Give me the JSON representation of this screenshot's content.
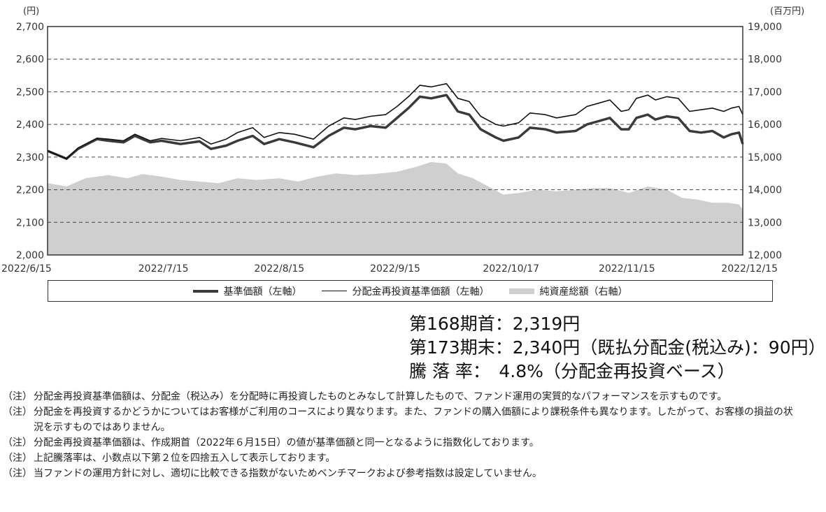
{
  "chart_data": {
    "type": "line",
    "left_unit": "(円)",
    "right_unit": "(百万円)",
    "left_ticks": [
      "2,700",
      "2,600",
      "2,500",
      "2,400",
      "2,300",
      "2,200",
      "2,100",
      "2,000"
    ],
    "right_ticks": [
      "19,000",
      "18,000",
      "17,000",
      "16,000",
      "15,000",
      "14,000",
      "13,000",
      "12,000"
    ],
    "ylim_left": [
      2000,
      2700
    ],
    "ylim_right": [
      12000,
      19000
    ],
    "x_tick_labels": [
      "2022/6/15",
      "2022/7/15",
      "2022/8/15",
      "2022/9/15",
      "2022/10/17",
      "2022/11/15",
      "2022/12/15"
    ],
    "x_range": [
      "2022-06-15",
      "2022-12-15"
    ],
    "grid": "horizontal dashed",
    "legend_placement": "below",
    "series": [
      {
        "name": "基準価額（左軸）",
        "axis": "left",
        "style": "thick-line",
        "color": "#3a3a3a",
        "points": [
          [
            "2022-06-15",
            2319
          ],
          [
            "2022-06-20",
            2295
          ],
          [
            "2022-06-23",
            2325
          ],
          [
            "2022-06-28",
            2355
          ],
          [
            "2022-07-01",
            2350
          ],
          [
            "2022-07-05",
            2345
          ],
          [
            "2022-07-08",
            2365
          ],
          [
            "2022-07-12",
            2345
          ],
          [
            "2022-07-15",
            2350
          ],
          [
            "2022-07-20",
            2340
          ],
          [
            "2022-07-25",
            2348
          ],
          [
            "2022-07-28",
            2325
          ],
          [
            "2022-08-01",
            2335
          ],
          [
            "2022-08-04",
            2350
          ],
          [
            "2022-08-08",
            2365
          ],
          [
            "2022-08-11",
            2340
          ],
          [
            "2022-08-15",
            2355
          ],
          [
            "2022-08-19",
            2345
          ],
          [
            "2022-08-24",
            2330
          ],
          [
            "2022-08-28",
            2365
          ],
          [
            "2022-09-01",
            2390
          ],
          [
            "2022-09-04",
            2385
          ],
          [
            "2022-09-08",
            2395
          ],
          [
            "2022-09-12",
            2390
          ],
          [
            "2022-09-15",
            2420
          ],
          [
            "2022-09-18",
            2450
          ],
          [
            "2022-09-21",
            2485
          ],
          [
            "2022-09-24",
            2480
          ],
          [
            "2022-09-28",
            2490
          ],
          [
            "2022-10-01",
            2440
          ],
          [
            "2022-10-04",
            2430
          ],
          [
            "2022-10-07",
            2385
          ],
          [
            "2022-10-11",
            2360
          ],
          [
            "2022-10-13",
            2350
          ],
          [
            "2022-10-17",
            2360
          ],
          [
            "2022-10-20",
            2390
          ],
          [
            "2022-10-24",
            2385
          ],
          [
            "2022-10-27",
            2375
          ],
          [
            "2022-11-01",
            2380
          ],
          [
            "2022-11-04",
            2400
          ],
          [
            "2022-11-07",
            2410
          ],
          [
            "2022-11-10",
            2420
          ],
          [
            "2022-11-13",
            2385
          ],
          [
            "2022-11-15",
            2385
          ],
          [
            "2022-11-17",
            2420
          ],
          [
            "2022-11-20",
            2430
          ],
          [
            "2022-11-22",
            2415
          ],
          [
            "2022-11-25",
            2425
          ],
          [
            "2022-11-28",
            2420
          ],
          [
            "2022-12-01",
            2380
          ],
          [
            "2022-12-04",
            2375
          ],
          [
            "2022-12-07",
            2380
          ],
          [
            "2022-12-10",
            2360
          ],
          [
            "2022-12-12",
            2370
          ],
          [
            "2022-12-14",
            2375
          ],
          [
            "2022-12-15",
            2340
          ]
        ]
      },
      {
        "name": "分配金再投資基準価額（左軸）",
        "axis": "left",
        "style": "thin-line",
        "color": "#111111",
        "points": [
          [
            "2022-06-15",
            2319
          ],
          [
            "2022-06-20",
            2295
          ],
          [
            "2022-06-23",
            2328
          ],
          [
            "2022-06-28",
            2358
          ],
          [
            "2022-07-01",
            2355
          ],
          [
            "2022-07-05",
            2350
          ],
          [
            "2022-07-08",
            2370
          ],
          [
            "2022-07-12",
            2350
          ],
          [
            "2022-07-15",
            2357
          ],
          [
            "2022-07-20",
            2350
          ],
          [
            "2022-07-25",
            2360
          ],
          [
            "2022-07-28",
            2340
          ],
          [
            "2022-08-01",
            2355
          ],
          [
            "2022-08-04",
            2375
          ],
          [
            "2022-08-08",
            2390
          ],
          [
            "2022-08-11",
            2360
          ],
          [
            "2022-08-15",
            2375
          ],
          [
            "2022-08-19",
            2370
          ],
          [
            "2022-08-24",
            2355
          ],
          [
            "2022-08-28",
            2395
          ],
          [
            "2022-09-01",
            2420
          ],
          [
            "2022-09-04",
            2415
          ],
          [
            "2022-09-08",
            2425
          ],
          [
            "2022-09-12",
            2430
          ],
          [
            "2022-09-15",
            2455
          ],
          [
            "2022-09-18",
            2485
          ],
          [
            "2022-09-21",
            2520
          ],
          [
            "2022-09-24",
            2515
          ],
          [
            "2022-09-28",
            2525
          ],
          [
            "2022-10-01",
            2480
          ],
          [
            "2022-10-04",
            2470
          ],
          [
            "2022-10-07",
            2425
          ],
          [
            "2022-10-11",
            2400
          ],
          [
            "2022-10-13",
            2395
          ],
          [
            "2022-10-17",
            2405
          ],
          [
            "2022-10-20",
            2435
          ],
          [
            "2022-10-24",
            2430
          ],
          [
            "2022-10-27",
            2420
          ],
          [
            "2022-11-01",
            2430
          ],
          [
            "2022-11-04",
            2455
          ],
          [
            "2022-11-07",
            2465
          ],
          [
            "2022-11-10",
            2475
          ],
          [
            "2022-11-13",
            2440
          ],
          [
            "2022-11-15",
            2445
          ],
          [
            "2022-11-17",
            2480
          ],
          [
            "2022-11-20",
            2490
          ],
          [
            "2022-11-22",
            2475
          ],
          [
            "2022-11-25",
            2485
          ],
          [
            "2022-11-28",
            2480
          ],
          [
            "2022-12-01",
            2440
          ],
          [
            "2022-12-04",
            2445
          ],
          [
            "2022-12-07",
            2450
          ],
          [
            "2022-12-10",
            2440
          ],
          [
            "2022-12-12",
            2450
          ],
          [
            "2022-12-14",
            2455
          ],
          [
            "2022-12-15",
            2430
          ]
        ]
      },
      {
        "name": "純資産総額（右軸）",
        "axis": "right",
        "style": "area",
        "color": "#cfcfcf",
        "points": [
          [
            "2022-06-15",
            14200
          ],
          [
            "2022-06-20",
            14100
          ],
          [
            "2022-06-25",
            14350
          ],
          [
            "2022-07-01",
            14450
          ],
          [
            "2022-07-06",
            14350
          ],
          [
            "2022-07-10",
            14480
          ],
          [
            "2022-07-15",
            14400
          ],
          [
            "2022-07-20",
            14300
          ],
          [
            "2022-07-25",
            14250
          ],
          [
            "2022-07-30",
            14200
          ],
          [
            "2022-08-04",
            14350
          ],
          [
            "2022-08-09",
            14300
          ],
          [
            "2022-08-15",
            14350
          ],
          [
            "2022-08-20",
            14250
          ],
          [
            "2022-08-25",
            14400
          ],
          [
            "2022-08-30",
            14500
          ],
          [
            "2022-09-04",
            14450
          ],
          [
            "2022-09-09",
            14480
          ],
          [
            "2022-09-15",
            14550
          ],
          [
            "2022-09-20",
            14700
          ],
          [
            "2022-09-24",
            14850
          ],
          [
            "2022-09-28",
            14800
          ],
          [
            "2022-10-01",
            14500
          ],
          [
            "2022-10-05",
            14350
          ],
          [
            "2022-10-09",
            14100
          ],
          [
            "2022-10-13",
            13850
          ],
          [
            "2022-10-17",
            13900
          ],
          [
            "2022-10-22",
            14000
          ],
          [
            "2022-10-27",
            13950
          ],
          [
            "2022-11-01",
            14000
          ],
          [
            "2022-11-06",
            14050
          ],
          [
            "2022-11-10",
            14050
          ],
          [
            "2022-11-15",
            13900
          ],
          [
            "2022-11-20",
            14100
          ],
          [
            "2022-11-25",
            14000
          ],
          [
            "2022-11-29",
            13750
          ],
          [
            "2022-12-03",
            13700
          ],
          [
            "2022-12-07",
            13600
          ],
          [
            "2022-12-11",
            13600
          ],
          [
            "2022-12-14",
            13550
          ],
          [
            "2022-12-15",
            13400
          ]
        ]
      }
    ]
  },
  "legend": {
    "items": [
      "基準価額（左軸）",
      "分配金再投資基準価額（左軸）",
      "純資産総額（右軸）"
    ]
  },
  "summary": {
    "row1": "第168期首：2,319円",
    "row2": "第173期末：2,340円（既払分配金(税込み)：90円）",
    "row3": "騰 落 率：　4.8%（分配金再投資ベース）"
  },
  "notes": [
    {
      "tag": "（注）",
      "text": "分配金再投資基準価額は、分配金（税込み）を分配時に再投資したものとみなして計算したもので、ファンド運用の実質的なパフォーマンスを示すものです。"
    },
    {
      "tag": "（注）",
      "text": "分配金を再投資するかどうかについてはお客様がご利用のコースにより異なります。また、ファンドの購入価額により課税条件も異なります。したがって、お客様の損益の状況を示すものではありません。"
    },
    {
      "tag": "（注）",
      "text": "分配金再投資基準価額は、作成期首（2022年６月15日）の値が基準価額と同一となるように指数化しております。"
    },
    {
      "tag": "（注）",
      "text": "上記騰落率は、小数点以下第２位を四捨五入して表示しております。"
    },
    {
      "tag": "（注）",
      "text": "当ファンドの運用方針に対し、適切に比較できる指数がないためベンチマークおよび参考指数は設定していません。"
    }
  ]
}
